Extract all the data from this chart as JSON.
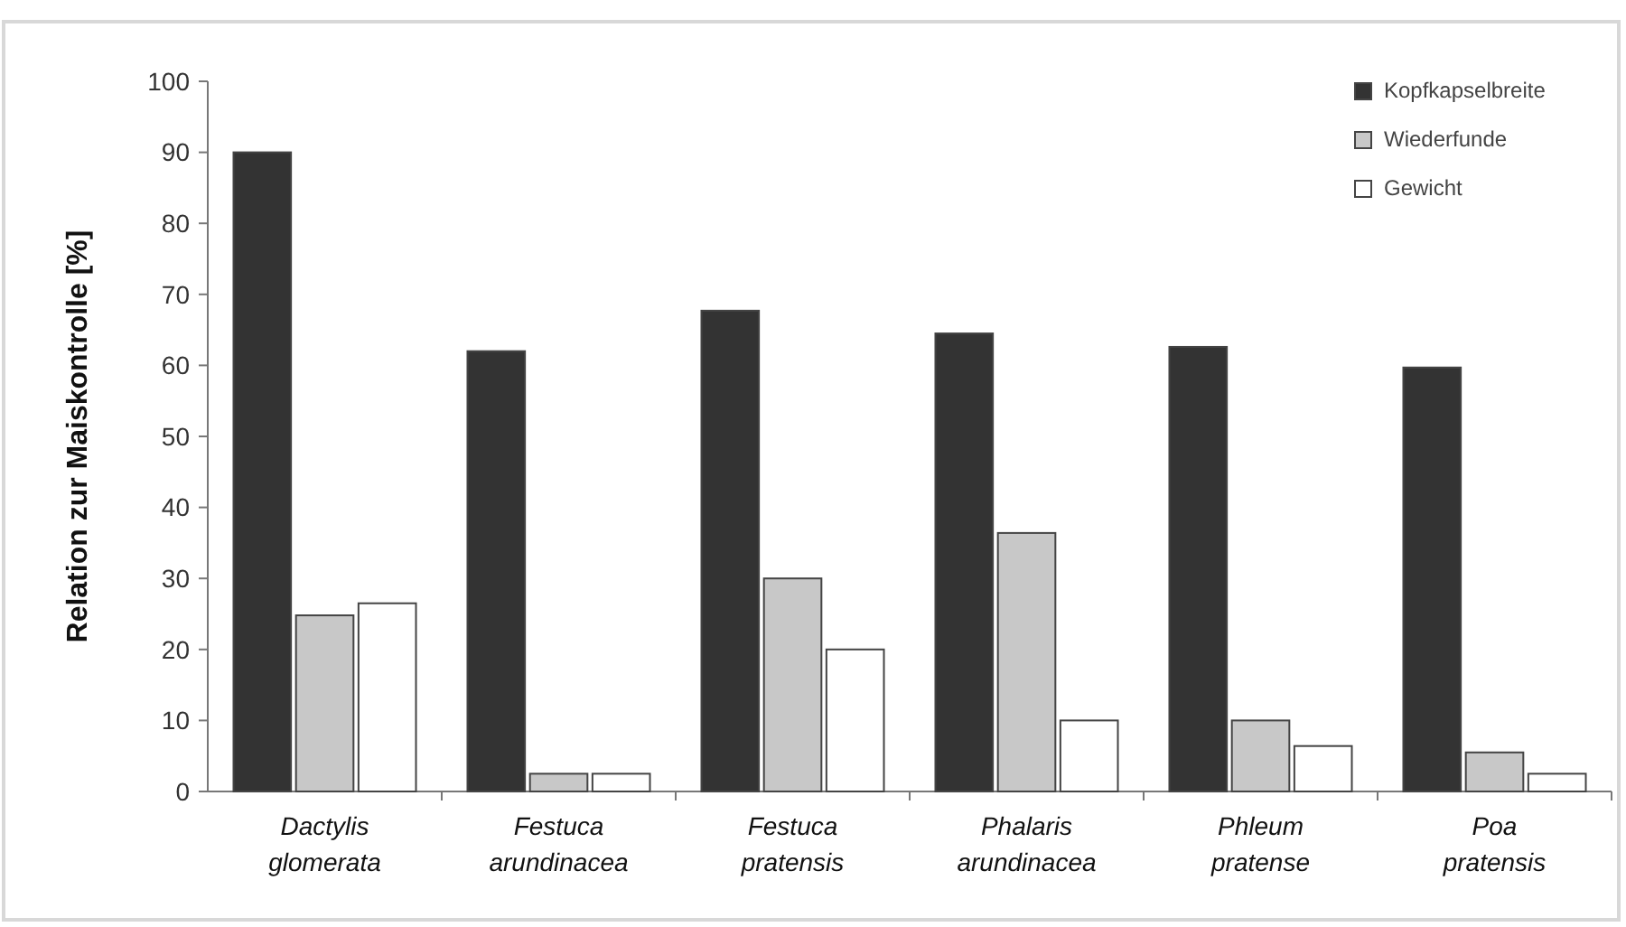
{
  "chart_data": {
    "type": "bar",
    "ylabel": "Relation zur Maiskontrolle [%]",
    "categories": [
      "Dactylis glomerata",
      "Festuca arundinacea",
      "Festuca pratensis",
      "Phalaris arundinacea",
      "Phleum pratense",
      "Poa pratensis"
    ],
    "series": [
      {
        "name": "Kopfkapselbreite",
        "color": "#333333",
        "values": [
          90,
          62,
          67.7,
          64.5,
          62.6,
          59.7
        ]
      },
      {
        "name": "Wiederfunde",
        "color": "#c8c8c8",
        "values": [
          24.8,
          2.5,
          30,
          36.4,
          10,
          5.5
        ]
      },
      {
        "name": "Gewicht",
        "color": "#ffffff",
        "values": [
          26.5,
          2.5,
          20,
          10,
          6.4,
          2.5
        ]
      }
    ],
    "ylim": [
      0,
      100
    ],
    "yticks": [
      0,
      10,
      20,
      30,
      40,
      50,
      60,
      70,
      80,
      90,
      100
    ],
    "legend": "top right",
    "grid": false
  }
}
